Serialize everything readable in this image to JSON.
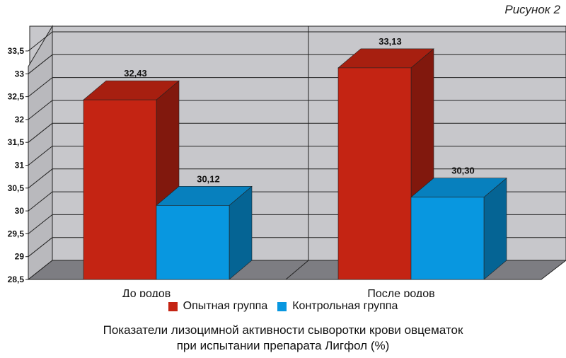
{
  "figure_label": "Рисунок 2",
  "caption": {
    "line1": "Показатели лизоцимной активности сыворотки крови овцематок",
    "line2": "при испытании препарата Лигфол (%)"
  },
  "chart_data": {
    "type": "bar",
    "style": "3d",
    "categories": [
      "До родов",
      "После родов"
    ],
    "series": [
      {
        "name": "Опытная группа",
        "values": [
          32.43,
          33.13
        ],
        "labels": [
          "32,43",
          "33,13"
        ],
        "color": "#c42413"
      },
      {
        "name": "Контрольная группа",
        "values": [
          30.12,
          30.3
        ],
        "labels": [
          "30,12",
          "30,30"
        ],
        "color": "#0897e0"
      }
    ],
    "ylim": [
      28.5,
      33.5
    ],
    "yticks": [
      28.5,
      29,
      29.5,
      30,
      30.5,
      31,
      31.5,
      32,
      32.5,
      33,
      33.5
    ],
    "ytick_labels": [
      "28,5",
      "29",
      "29,5",
      "30",
      "30,5",
      "31",
      "31,5",
      "32",
      "32,5",
      "33",
      "33,5"
    ],
    "grid": true,
    "legend": "bottom",
    "title": "",
    "xlabel": "",
    "ylabel": ""
  }
}
